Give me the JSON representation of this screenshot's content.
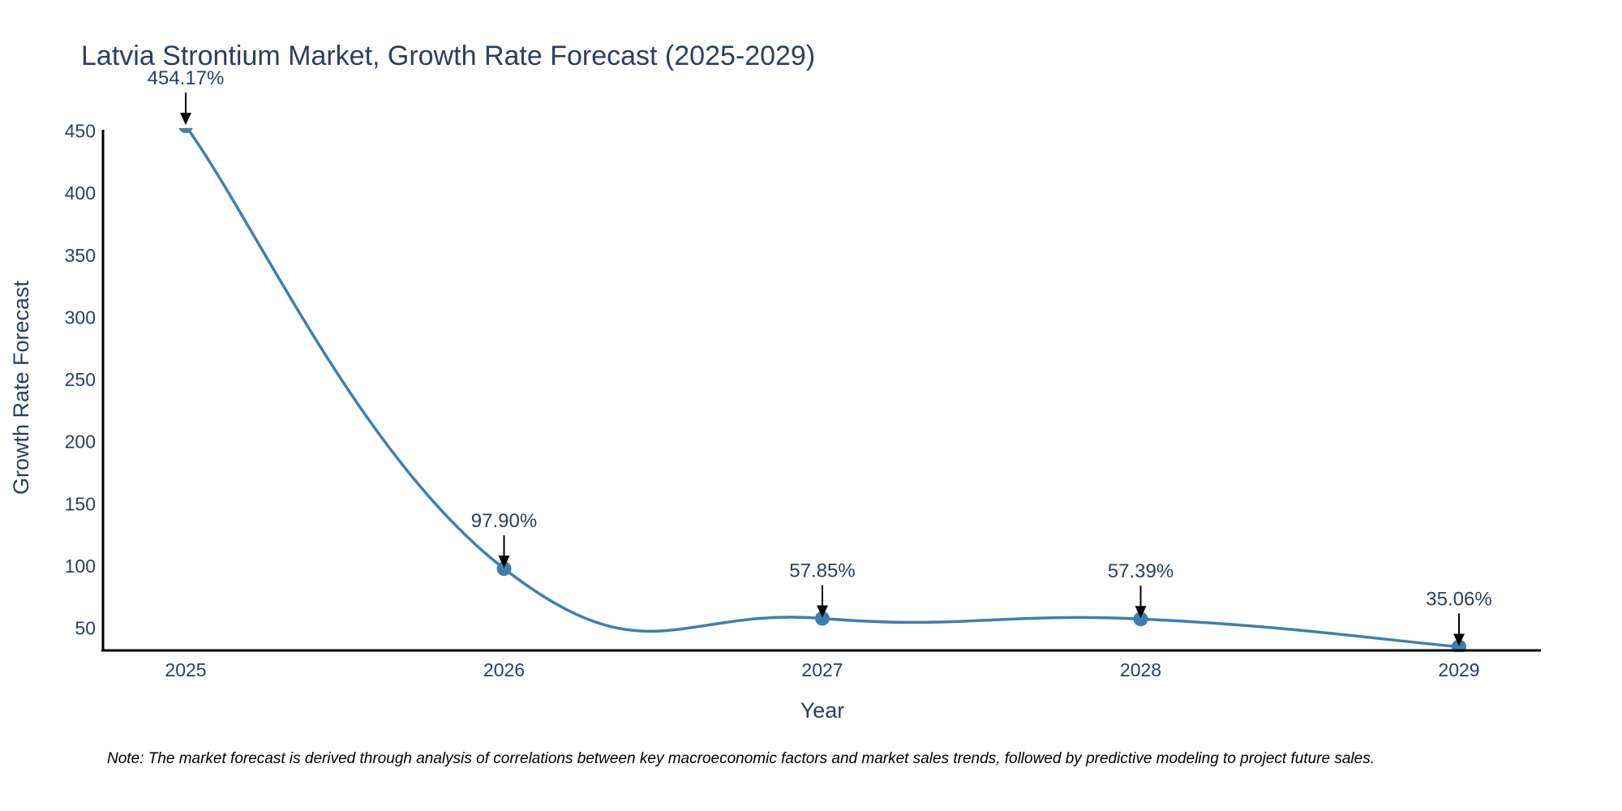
{
  "colors": {
    "line": "#3f7fad",
    "text": "#2a3f5f",
    "axis": "#000000",
    "arrow": "#000000"
  },
  "chart_data": {
    "type": "line",
    "title": "Latvia Strontium Market, Growth Rate Forecast (2025-2029)",
    "xlabel": "Year",
    "ylabel": "Growth Rate Forecast",
    "categories": [
      "2025",
      "2026",
      "2027",
      "2028",
      "2029"
    ],
    "series": [
      {
        "name": "Growth Rate Forecast",
        "values": [
          454.17,
          97.9,
          57.85,
          57.39,
          35.06
        ]
      }
    ],
    "data_labels": [
      "454.17%",
      "97.90%",
      "57.85%",
      "57.39%",
      "35.06%"
    ],
    "ylim": [
      33.4,
      451
    ],
    "yticks": [
      50,
      100,
      150,
      200,
      250,
      300,
      350,
      400,
      450
    ],
    "grid": false,
    "legend": "none",
    "line_shape": "spline"
  },
  "note": "Note: The market forecast is derived through analysis of correlations between key macroeconomic factors and market sales trends, followed by predictive modeling to project future sales."
}
